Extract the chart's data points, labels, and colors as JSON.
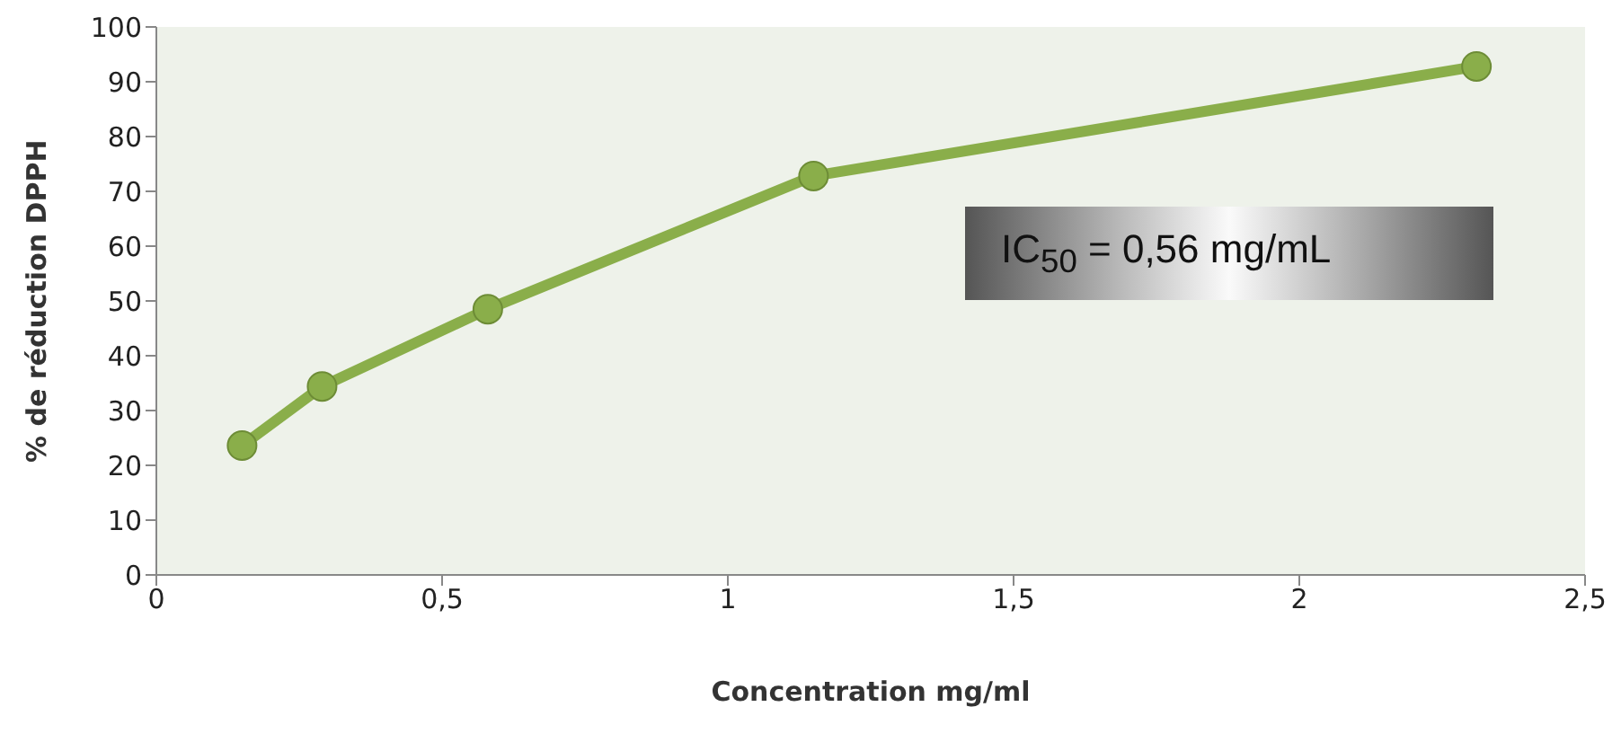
{
  "chart_data": {
    "type": "line",
    "xlabel": "Concentration mg/ml",
    "ylabel": "% de réduction DPPH",
    "x": [
      0.15,
      0.29,
      0.58,
      1.15,
      2.31
    ],
    "series": [
      {
        "color": "#8aae4a",
        "values": [
          23.6,
          34.4,
          48.5,
          72.8,
          92.8
        ]
      }
    ],
    "xlim": [
      0,
      2.5
    ],
    "xticks": [
      0,
      {
        "value": 0.5,
        "label": "0,5"
      },
      1,
      {
        "value": 1.5,
        "label": "1,5"
      },
      2,
      {
        "value": 2.5,
        "label": "2,5"
      }
    ],
    "ylim": [
      0,
      100
    ],
    "yticks": [
      0,
      10,
      20,
      30,
      40,
      50,
      60,
      70,
      80,
      90,
      100
    ],
    "marker": "circle",
    "grid": false,
    "legend": false,
    "annotations": [
      "IC$_{50}$ = 0,56 mg/mL"
    ]
  }
}
